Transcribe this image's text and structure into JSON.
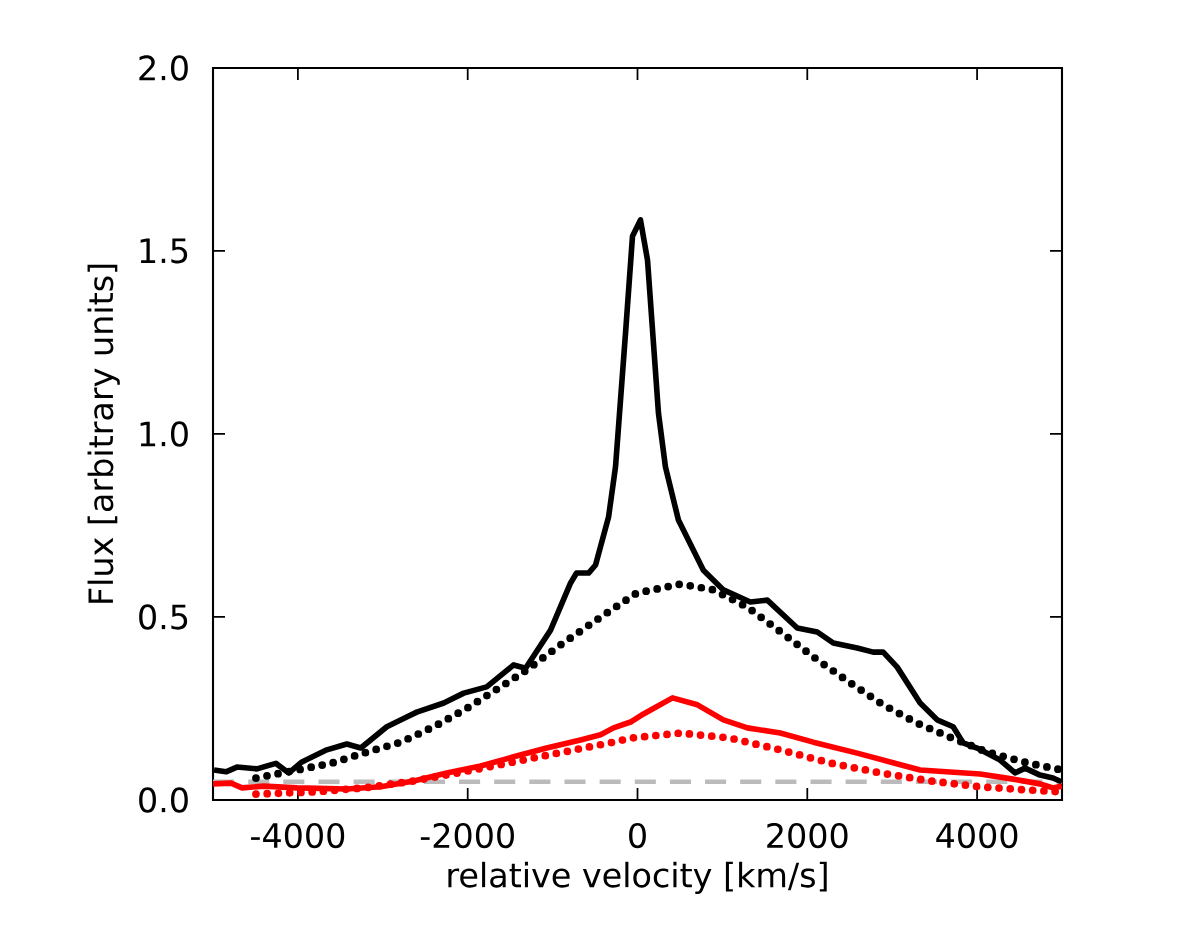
{
  "chart_data": {
    "type": "line",
    "xlabel": "relative velocity [km/s]",
    "ylabel": "Flux [arbitrary units]",
    "xlim": [
      -5000,
      5000
    ],
    "ylim": [
      0,
      2.0
    ],
    "xticks": [
      -4000,
      -2000,
      0,
      2000,
      4000
    ],
    "yticks": [
      {
        "value": 0,
        "label": "0.0"
      },
      {
        "value": 0.5,
        "label": "0.5"
      },
      {
        "value": 1.0,
        "label": "1.0"
      },
      {
        "value": 1.5,
        "label": "1.5"
      },
      {
        "value": 2.0,
        "label": "2.0"
      }
    ],
    "grid": false,
    "marker": "none",
    "ref_lines": [
      {
        "axis": "y",
        "value": 0.05,
        "color": "#bbbbbb",
        "line_style": "dashed"
      }
    ],
    "series": [
      {
        "color": "#000000",
        "line_style": "solid",
        "x": [
          -4988,
          -4847,
          -4718,
          -4482,
          -4259,
          -4106,
          -3953,
          -3659,
          -3424,
          -3259,
          -2953,
          -2718,
          -2600,
          -2282,
          -2047,
          -1776,
          -1459,
          -1318,
          -1024,
          -788,
          -718,
          -576,
          -494,
          -341,
          -259,
          -141,
          -59,
          35,
          118,
          247,
          329,
          482,
          776,
          1012,
          1329,
          1529,
          1882,
          2118,
          2306,
          2588,
          2776,
          2894,
          3059,
          3329,
          3529,
          3718,
          3835,
          4000,
          4271,
          4447,
          4565,
          4741,
          4894,
          5000
        ],
        "values": [
          0.082,
          0.077,
          0.09,
          0.085,
          0.1,
          0.074,
          0.104,
          0.137,
          0.153,
          0.142,
          0.2,
          0.227,
          0.24,
          0.265,
          0.292,
          0.309,
          0.369,
          0.36,
          0.464,
          0.593,
          0.62,
          0.62,
          0.642,
          0.773,
          0.91,
          1.276,
          1.54,
          1.585,
          1.475,
          1.057,
          0.91,
          0.765,
          0.628,
          0.574,
          0.541,
          0.546,
          0.47,
          0.459,
          0.429,
          0.415,
          0.404,
          0.404,
          0.363,
          0.265,
          0.219,
          0.2,
          0.156,
          0.142,
          0.109,
          0.074,
          0.087,
          0.068,
          0.06,
          0.049
        ]
      },
      {
        "color": "#000000",
        "line_style": "dotted",
        "x": [
          -4494,
          -3612,
          -3224,
          -2788,
          -2400,
          -2012,
          -1612,
          -1306,
          -906,
          -482,
          -12,
          506,
          894,
          1294,
          1706,
          2118,
          2506,
          2894,
          3294,
          3706,
          4118,
          4600,
          5000
        ],
        "values": [
          0.06,
          0.1,
          0.128,
          0.158,
          0.2,
          0.25,
          0.309,
          0.355,
          0.424,
          0.492,
          0.565,
          0.59,
          0.574,
          0.527,
          0.456,
          0.383,
          0.32,
          0.26,
          0.21,
          0.169,
          0.131,
          0.101,
          0.082
        ]
      },
      {
        "color": "#ff0000",
        "line_style": "solid",
        "x": [
          -5000,
          -4788,
          -4659,
          -4400,
          -4012,
          -3424,
          -3024,
          -2635,
          -2247,
          -1847,
          -1459,
          -1071,
          -671,
          -435,
          -282,
          -82,
          71,
          412,
          706,
          1012,
          1294,
          1682,
          2071,
          2588,
          2976,
          3329,
          4035,
          4424,
          4741,
          4894,
          5000
        ],
        "values": [
          0.044,
          0.046,
          0.033,
          0.038,
          0.033,
          0.03,
          0.036,
          0.052,
          0.074,
          0.093,
          0.118,
          0.142,
          0.164,
          0.178,
          0.197,
          0.213,
          0.235,
          0.279,
          0.26,
          0.219,
          0.197,
          0.183,
          0.158,
          0.128,
          0.104,
          0.082,
          0.071,
          0.057,
          0.044,
          0.033,
          0.038
        ]
      },
      {
        "color": "#ff0000",
        "line_style": "dotted",
        "x": [
          -4494,
          -3812,
          -3224,
          -2635,
          -2047,
          -1459,
          -871,
          -282,
          -82,
          506,
          1094,
          1682,
          2271,
          2859,
          3447,
          4035,
          4624,
          5000
        ],
        "values": [
          0.016,
          0.022,
          0.033,
          0.052,
          0.077,
          0.104,
          0.131,
          0.158,
          0.169,
          0.183,
          0.169,
          0.137,
          0.101,
          0.074,
          0.052,
          0.036,
          0.027,
          0.022
        ]
      }
    ]
  }
}
